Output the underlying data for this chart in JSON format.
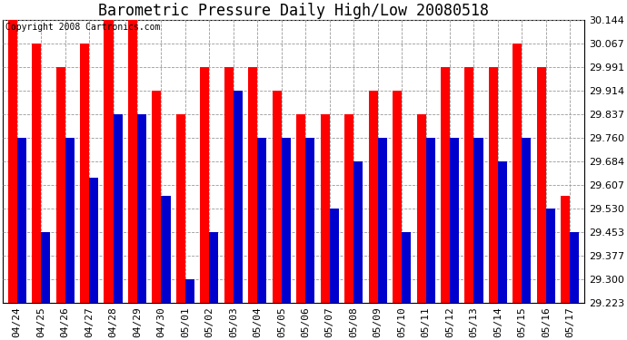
{
  "title": "Barometric Pressure Daily High/Low 20080518",
  "copyright": "Copyright 2008 Cartronics.com",
  "categories": [
    "04/24",
    "04/25",
    "04/26",
    "04/27",
    "04/28",
    "04/29",
    "04/30",
    "05/01",
    "05/02",
    "05/03",
    "05/04",
    "05/05",
    "05/06",
    "05/07",
    "05/08",
    "05/09",
    "05/10",
    "05/11",
    "05/12",
    "05/13",
    "05/14",
    "05/15",
    "05/16",
    "05/17"
  ],
  "highs": [
    30.144,
    30.067,
    29.991,
    30.067,
    30.144,
    30.144,
    29.914,
    29.837,
    29.991,
    29.991,
    29.991,
    29.914,
    29.837,
    29.837,
    29.837,
    29.914,
    29.914,
    29.837,
    29.991,
    29.991,
    29.991,
    30.067,
    29.991,
    29.57
  ],
  "lows": [
    29.76,
    29.453,
    29.76,
    29.63,
    29.837,
    29.837,
    29.57,
    29.3,
    29.453,
    29.914,
    29.76,
    29.76,
    29.76,
    29.53,
    29.684,
    29.76,
    29.453,
    29.76,
    29.76,
    29.76,
    29.684,
    29.76,
    29.53,
    29.453
  ],
  "ymin": 29.223,
  "ymax": 30.144,
  "yticks": [
    29.223,
    29.3,
    29.377,
    29.453,
    29.53,
    29.607,
    29.684,
    29.76,
    29.837,
    29.914,
    29.991,
    30.067,
    30.144
  ],
  "bar_width": 0.38,
  "high_color": "#ff0000",
  "low_color": "#0000cc",
  "bg_color": "#ffffff",
  "plot_bg_color": "#ffffff",
  "grid_color": "#999999",
  "title_fontsize": 12,
  "tick_fontsize": 8,
  "copyright_fontsize": 7
}
